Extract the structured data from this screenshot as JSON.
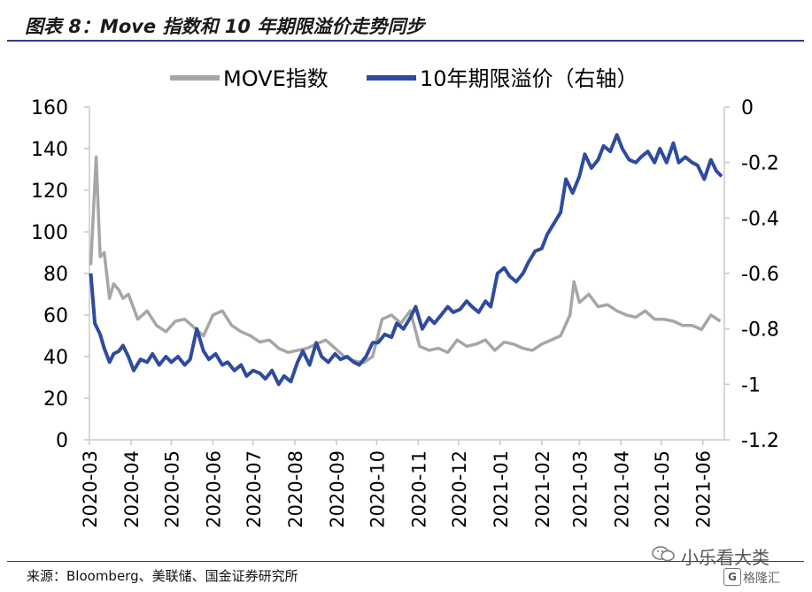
{
  "title": "图表 8：Move 指数和 10 年期限溢价走势同步",
  "source": "来源：Bloomberg、美联储、国金证券研究所",
  "watermark": {
    "name": "小乐看大类",
    "brand": "格隆汇",
    "brand_icon": "G"
  },
  "chart_data": {
    "type": "line",
    "x_ticks": [
      "2020-03",
      "2020-04",
      "2020-05",
      "2020-06",
      "2020-07",
      "2020-08",
      "2020-09",
      "2020-10",
      "2020-11",
      "2020-12",
      "2021-01",
      "2021-02",
      "2021-03",
      "2021-04",
      "2021-05",
      "2021-06"
    ],
    "y_left": {
      "ticks": [
        "160",
        "140",
        "120",
        "100",
        "80",
        "60",
        "40",
        "20",
        "0"
      ],
      "range": [
        0,
        160
      ]
    },
    "y_right": {
      "ticks": [
        "0",
        "-0.2",
        "-0.4",
        "-0.6",
        "-0.8",
        "-1",
        "-1.2"
      ],
      "range": [
        -1.2,
        0
      ]
    },
    "grid": false,
    "legend_position": "top",
    "series": [
      {
        "name": "MOVE指数",
        "axis": "left",
        "color": "#a6a6a6",
        "x": [
          "2020-03-02",
          "2020-03-06",
          "2020-03-09",
          "2020-03-12",
          "2020-03-16",
          "2020-03-19",
          "2020-03-23",
          "2020-03-26",
          "2020-03-30",
          "2020-04-06",
          "2020-04-13",
          "2020-04-20",
          "2020-04-27",
          "2020-05-04",
          "2020-05-11",
          "2020-05-18",
          "2020-05-25",
          "2020-06-01",
          "2020-06-08",
          "2020-06-15",
          "2020-06-22",
          "2020-06-29",
          "2020-07-06",
          "2020-07-13",
          "2020-07-20",
          "2020-07-27",
          "2020-08-03",
          "2020-08-10",
          "2020-08-17",
          "2020-08-24",
          "2020-08-31",
          "2020-09-07",
          "2020-09-14",
          "2020-09-21",
          "2020-09-28",
          "2020-10-05",
          "2020-10-12",
          "2020-10-19",
          "2020-10-26",
          "2020-11-02",
          "2020-11-09",
          "2020-11-16",
          "2020-11-23",
          "2020-11-30",
          "2020-12-07",
          "2020-12-14",
          "2020-12-21",
          "2020-12-28",
          "2021-01-04",
          "2021-01-11",
          "2021-01-18",
          "2021-01-25",
          "2021-02-01",
          "2021-02-08",
          "2021-02-15",
          "2021-02-22",
          "2021-02-25",
          "2021-03-01",
          "2021-03-08",
          "2021-03-15",
          "2021-03-22",
          "2021-03-29",
          "2021-04-05",
          "2021-04-12",
          "2021-04-19",
          "2021-04-26",
          "2021-05-03",
          "2021-05-10",
          "2021-05-17",
          "2021-05-24",
          "2021-05-31",
          "2021-06-07",
          "2021-06-14"
        ],
        "values": [
          84,
          136,
          88,
          90,
          68,
          75,
          72,
          68,
          70,
          58,
          62,
          55,
          52,
          57,
          58,
          54,
          50,
          60,
          62,
          55,
          52,
          50,
          47,
          48,
          44,
          42,
          43,
          44,
          46,
          48,
          44,
          40,
          38,
          37,
          40,
          58,
          60,
          56,
          62,
          45,
          43,
          44,
          42,
          48,
          45,
          46,
          48,
          43,
          47,
          46,
          44,
          43,
          46,
          48,
          50,
          60,
          76,
          66,
          70,
          64,
          65,
          62,
          60,
          59,
          62,
          58,
          58,
          57,
          55,
          55,
          53,
          60,
          57
        ]
      },
      {
        "name": "10年期限溢价（右轴）",
        "axis": "right",
        "color": "#2e4ba0",
        "x": [
          "2020-03-02",
          "2020-03-05",
          "2020-03-09",
          "2020-03-12",
          "2020-03-16",
          "2020-03-19",
          "2020-03-23",
          "2020-03-26",
          "2020-03-30",
          "2020-04-03",
          "2020-04-08",
          "2020-04-13",
          "2020-04-17",
          "2020-04-22",
          "2020-04-27",
          "2020-05-01",
          "2020-05-06",
          "2020-05-11",
          "2020-05-15",
          "2020-05-20",
          "2020-05-25",
          "2020-05-29",
          "2020-06-03",
          "2020-06-08",
          "2020-06-12",
          "2020-06-17",
          "2020-06-22",
          "2020-06-26",
          "2020-07-01",
          "2020-07-06",
          "2020-07-10",
          "2020-07-15",
          "2020-07-20",
          "2020-07-24",
          "2020-07-29",
          "2020-08-03",
          "2020-08-07",
          "2020-08-12",
          "2020-08-17",
          "2020-08-21",
          "2020-08-26",
          "2020-08-31",
          "2020-09-04",
          "2020-09-09",
          "2020-09-14",
          "2020-09-18",
          "2020-09-23",
          "2020-09-28",
          "2020-10-02",
          "2020-10-07",
          "2020-10-12",
          "2020-10-16",
          "2020-10-21",
          "2020-10-26",
          "2020-10-30",
          "2020-11-04",
          "2020-11-09",
          "2020-11-13",
          "2020-11-18",
          "2020-11-23",
          "2020-11-27",
          "2020-12-02",
          "2020-12-07",
          "2020-12-11",
          "2020-12-16",
          "2020-12-21",
          "2020-12-25",
          "2020-12-30",
          "2021-01-04",
          "2021-01-08",
          "2021-01-13",
          "2021-01-18",
          "2021-01-22",
          "2021-01-27",
          "2021-02-01",
          "2021-02-05",
          "2021-02-10",
          "2021-02-15",
          "2021-02-19",
          "2021-02-24",
          "2021-03-01",
          "2021-03-05",
          "2021-03-10",
          "2021-03-15",
          "2021-03-19",
          "2021-03-24",
          "2021-03-29",
          "2021-04-02",
          "2021-04-07",
          "2021-04-12",
          "2021-04-16",
          "2021-04-21",
          "2021-04-26",
          "2021-04-30",
          "2021-05-05",
          "2021-05-10",
          "2021-05-14",
          "2021-05-19",
          "2021-05-24",
          "2021-05-28",
          "2021-06-02",
          "2021-06-07",
          "2021-06-11",
          "2021-06-15"
        ],
        "values": [
          -0.6,
          -0.78,
          -0.82,
          -0.87,
          -0.92,
          -0.89,
          -0.88,
          -0.86,
          -0.9,
          -0.95,
          -0.91,
          -0.92,
          -0.89,
          -0.93,
          -0.9,
          -0.92,
          -0.9,
          -0.93,
          -0.91,
          -0.8,
          -0.88,
          -0.91,
          -0.89,
          -0.93,
          -0.92,
          -0.95,
          -0.93,
          -0.97,
          -0.95,
          -0.96,
          -0.98,
          -0.95,
          -1.0,
          -0.97,
          -0.99,
          -0.92,
          -0.88,
          -0.93,
          -0.85,
          -0.9,
          -0.92,
          -0.89,
          -0.91,
          -0.9,
          -0.92,
          -0.93,
          -0.9,
          -0.85,
          -0.85,
          -0.82,
          -0.83,
          -0.78,
          -0.8,
          -0.76,
          -0.72,
          -0.8,
          -0.76,
          -0.78,
          -0.75,
          -0.72,
          -0.74,
          -0.73,
          -0.7,
          -0.72,
          -0.74,
          -0.7,
          -0.72,
          -0.6,
          -0.58,
          -0.61,
          -0.63,
          -0.6,
          -0.56,
          -0.52,
          -0.51,
          -0.46,
          -0.42,
          -0.38,
          -0.26,
          -0.31,
          -0.25,
          -0.17,
          -0.22,
          -0.19,
          -0.14,
          -0.16,
          -0.1,
          -0.15,
          -0.19,
          -0.2,
          -0.18,
          -0.16,
          -0.2,
          -0.15,
          -0.2,
          -0.13,
          -0.2,
          -0.18,
          -0.2,
          -0.21,
          -0.26,
          -0.19,
          -0.23,
          -0.25
        ]
      }
    ]
  }
}
